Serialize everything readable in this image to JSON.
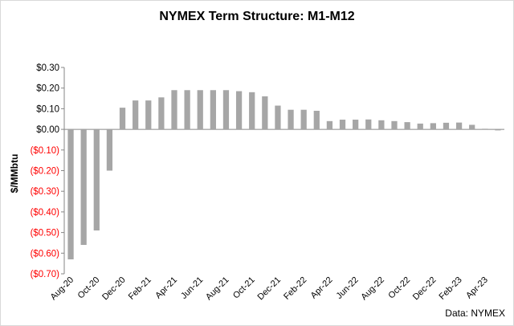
{
  "chart_data": {
    "type": "bar",
    "title": "NYMEX Term Structure: M1-M12",
    "ylabel": "$/MMbtu",
    "xlabel": "",
    "source": "Data: NYMEX",
    "ylim": [
      -0.7,
      0.3
    ],
    "ytick_labels": [
      "$0.30",
      "$0.20",
      "$0.10",
      "$0.00",
      "($0.10)",
      "($0.20)",
      "($0.30)",
      "($0.40)",
      "($0.50)",
      "($0.60)",
      "($0.70)"
    ],
    "ytick_values": [
      0.3,
      0.2,
      0.1,
      0.0,
      -0.1,
      -0.2,
      -0.3,
      -0.4,
      -0.5,
      -0.6,
      -0.7
    ],
    "negative_label_color": "#ff0000",
    "bar_color": "#a6a6a6",
    "grid": false,
    "legend": "none",
    "categories": [
      "Aug-20",
      "Sep-20",
      "Oct-20",
      "Nov-20",
      "Dec-20",
      "Jan-21",
      "Feb-21",
      "Mar-21",
      "Apr-21",
      "May-21",
      "Jun-21",
      "Jul-21",
      "Aug-21",
      "Sep-21",
      "Oct-21",
      "Nov-21",
      "Dec-21",
      "Jan-22",
      "Feb-22",
      "Mar-22",
      "Apr-22",
      "May-22",
      "Jun-22",
      "Jul-22",
      "Aug-22",
      "Sep-22",
      "Oct-22",
      "Nov-22",
      "Dec-22",
      "Jan-23",
      "Feb-23",
      "Mar-23",
      "Apr-23",
      "May-23"
    ],
    "x_tick_labels": [
      "Aug-20",
      "Oct-20",
      "Dec-20",
      "Feb-21",
      "Apr-21",
      "Jun-21",
      "Aug-21",
      "Oct-21",
      "Dec-21",
      "Feb-22",
      "Apr-22",
      "Jun-22",
      "Aug-22",
      "Oct-22",
      "Dec-22",
      "Feb-23",
      "Apr-23"
    ],
    "values": [
      -0.63,
      -0.56,
      -0.49,
      -0.2,
      0.105,
      0.14,
      0.14,
      0.155,
      0.19,
      0.19,
      0.19,
      0.19,
      0.19,
      0.185,
      0.18,
      0.16,
      0.115,
      0.095,
      0.095,
      0.09,
      0.04,
      0.047,
      0.047,
      0.048,
      0.044,
      0.04,
      0.035,
      0.028,
      0.03,
      0.032,
      0.033,
      0.022,
      0.003,
      -0.005
    ]
  }
}
